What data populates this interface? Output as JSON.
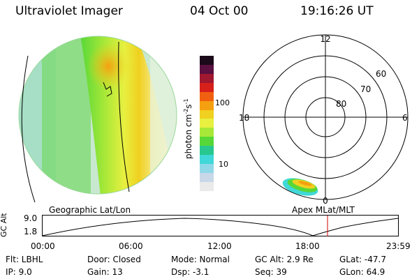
{
  "header": {
    "instrument": "Ultraviolet Imager",
    "date": "04 Oct 00",
    "time": "19:16:26 UT"
  },
  "colorbar": {
    "unit": "photon cm-2s-1",
    "ticks": [
      "100",
      "10"
    ],
    "colors": [
      "#1a0a1a",
      "#5a1040",
      "#a01830",
      "#d8201a",
      "#f06010",
      "#f5a010",
      "#f0d020",
      "#e8f040",
      "#a8e838",
      "#58d838",
      "#28c890",
      "#40d8d8",
      "#90d8e8",
      "#c8d8e8",
      "#eaeaea"
    ]
  },
  "polar": {
    "labels": {
      "top": "12",
      "left": "18",
      "right": "6",
      "bottom": "0"
    },
    "latitudes": [
      "60",
      "70",
      "80"
    ]
  },
  "orbit": {
    "left_title": "Geographic Lat/Lon",
    "right_title": "Apex  MLat/MLT",
    "ylabel": "GC Alt",
    "yticks": [
      "9.0",
      "1.8"
    ],
    "xticks": [
      "00:00",
      "06:00",
      "12:00",
      "18:00",
      "23:59"
    ],
    "marker_time": "19:16"
  },
  "footer": {
    "filter": "Flt: LBHL",
    "ip": "IP:  9.0",
    "door": "Door: Closed",
    "gain": "Gain: 13",
    "mode": "Mode: Normal",
    "dsp": "Dsp:    -3.1",
    "gc_alt": "GC Alt: 2.9 Re",
    "seq": "Seq: 39",
    "glat": "GLat: -47.7",
    "glon": "GLon:  64.9"
  }
}
